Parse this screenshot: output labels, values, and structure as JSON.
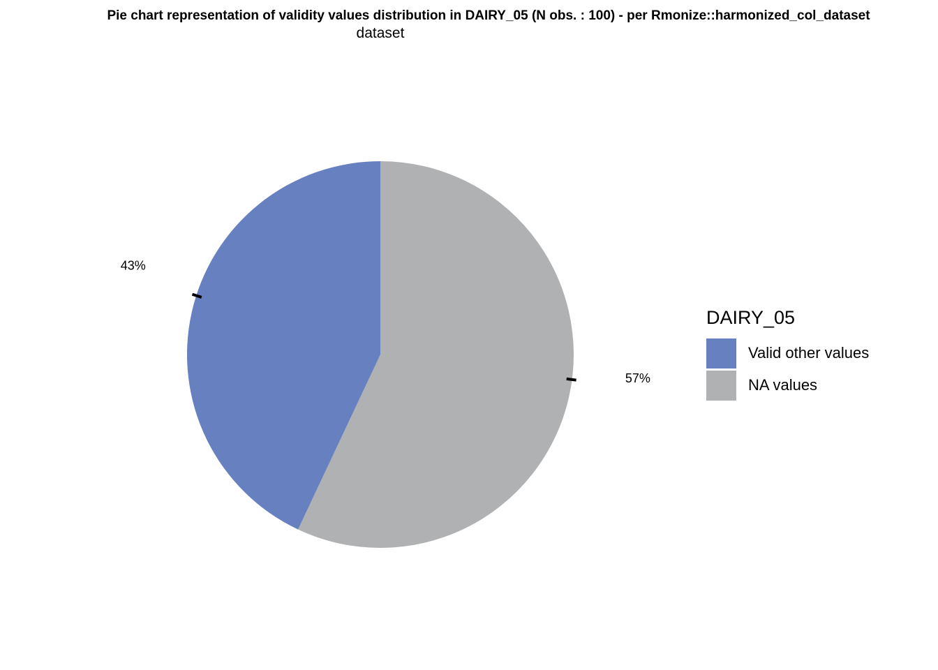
{
  "chart_data": {
    "type": "pie",
    "title": "Pie chart representation of validity values distribution in DAIRY_05 (N obs. : 100) - per Rmonize::harmonized_col_dataset",
    "subtitle": "dataset",
    "legend": {
      "title": "DAIRY_05",
      "placement": "right"
    },
    "slices": [
      {
        "label": "Valid other values",
        "value": 43,
        "display": "43%",
        "color": "#6780C0"
      },
      {
        "label": "NA values",
        "value": 57,
        "display": "57%",
        "color": "#B0B1B3"
      }
    ],
    "start_direction": "clockwise-from-top"
  }
}
